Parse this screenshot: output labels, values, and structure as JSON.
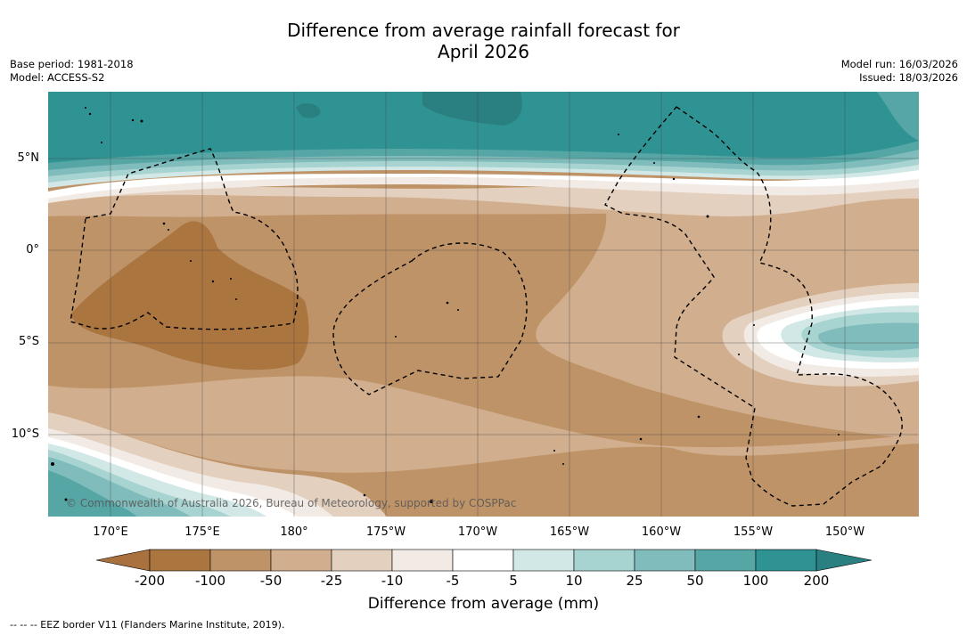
{
  "title_line1": "Difference from average rainfall forecast for",
  "title_line2": "April 2026",
  "meta_left": {
    "base_period": "Base period: 1981-2018",
    "model": "Model: ACCESS-S2"
  },
  "meta_right": {
    "model_run": "Model run: 16/03/2026",
    "issued": "Issued: 18/03/2026"
  },
  "latitude_labels": [
    "5°N",
    "0°",
    "5°S",
    "10°S"
  ],
  "longitude_labels": [
    "170°E",
    "175°E",
    "180°",
    "175°W",
    "170°W",
    "165°W",
    "160°W",
    "155°W",
    "150°W"
  ],
  "copyright": "© Commonwealth of Australia 2026, Bureau of Meteorology, supported by COSPPac",
  "colorbar": {
    "ticks": [
      "-200",
      "-100",
      "-50",
      "-25",
      "-10",
      "-5",
      "5",
      "10",
      "25",
      "50",
      "100",
      "200"
    ],
    "colors": [
      "#a9713e",
      "#ab7540",
      "#bf9368",
      "#d1ae8d",
      "#e4d0be",
      "#f2ebe5",
      "#ffffff",
      "#d2e8e6",
      "#a7d3d1",
      "#80bcbb",
      "#57a6a6",
      "#2f9393",
      "#2a7f80"
    ],
    "label": "Difference from average (mm)"
  },
  "eez_note": "--  --  -- EEZ border V11 (Flanders Marine Institute, 2019)."
}
